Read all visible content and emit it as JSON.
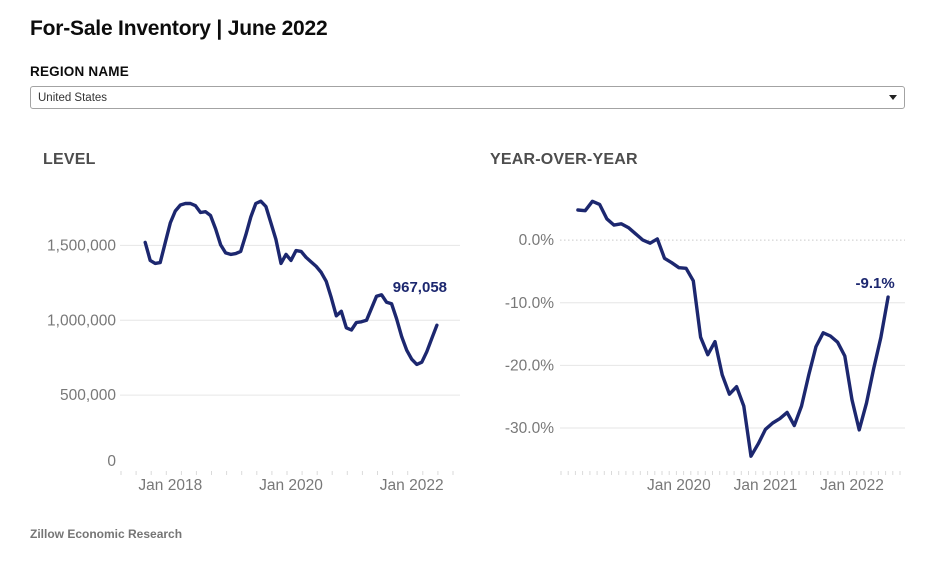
{
  "header": {
    "title": "For-Sale Inventory | June 2022"
  },
  "region_selector": {
    "label": "REGION NAME",
    "value": "United States",
    "caret_icon": "triangle-down"
  },
  "footer": {
    "source": "Zillow Economic Research"
  },
  "colors": {
    "line": "#1c276f",
    "annotation": "#1c276f",
    "grid": "#e6e6e6",
    "zero_grid": "#c9c9c9",
    "axis_dash": "#dadada",
    "tick_label": "#787878",
    "chart_title": "#4d4d4d"
  },
  "chart_data": [
    {
      "id": "level",
      "type": "line",
      "title": "LEVEL",
      "x_unit": "month",
      "start_month": "2017-08",
      "end_month": "2022-06",
      "values": [
        1520000,
        1400000,
        1380000,
        1385000,
        1520000,
        1650000,
        1730000,
        1770000,
        1780000,
        1780000,
        1765000,
        1720000,
        1725000,
        1700000,
        1610000,
        1505000,
        1450000,
        1440000,
        1445000,
        1460000,
        1570000,
        1690000,
        1780000,
        1795000,
        1760000,
        1650000,
        1540000,
        1380000,
        1440000,
        1400000,
        1465000,
        1460000,
        1420000,
        1390000,
        1360000,
        1320000,
        1260000,
        1150000,
        1030000,
        1060000,
        950000,
        935000,
        985000,
        990000,
        1000000,
        1080000,
        1160000,
        1170000,
        1120000,
        1110000,
        1010000,
        890000,
        800000,
        740000,
        705000,
        720000,
        790000,
        880000,
        967058
      ],
      "ylim": [
        0,
        1870000
      ],
      "y_ticks": [
        {
          "value": 0,
          "label": "0",
          "grid": false
        },
        {
          "value": 500000,
          "label": "500,000",
          "grid": true
        },
        {
          "value": 1000000,
          "label": "1,000,000",
          "grid": true
        },
        {
          "value": 1500000,
          "label": "1,500,000",
          "grid": true
        }
      ],
      "x_ticks": [
        {
          "index": 5,
          "label": "Jan 2018"
        },
        {
          "index": 29,
          "label": "Jan 2020"
        },
        {
          "index": 53,
          "label": "Jan 2022"
        }
      ],
      "annotation": {
        "text": "967,058",
        "anchor": "last-point"
      },
      "domain_frac": [
        0.074,
        0.932
      ],
      "grid": true,
      "legend": null
    },
    {
      "id": "yoy",
      "type": "line",
      "title": "YEAR-OVER-YEAR",
      "x_unit": "month",
      "start_month": "2018-11",
      "end_month": "2022-06",
      "values": [
        4.8,
        4.7,
        6.2,
        5.7,
        3.4,
        2.4,
        2.6,
        2.0,
        1.0,
        0.0,
        -0.5,
        0.2,
        -2.9,
        -3.6,
        -4.4,
        -4.5,
        -6.5,
        -15.5,
        -18.3,
        -16.2,
        -21.5,
        -24.6,
        -23.4,
        -26.5,
        -34.5,
        -32.5,
        -30.2,
        -29.2,
        -28.5,
        -27.5,
        -29.6,
        -26.5,
        -21.5,
        -17.0,
        -14.8,
        -15.3,
        -16.3,
        -18.5,
        -25.5,
        -30.3,
        -26.0,
        -20.5,
        -15.5,
        -9.1
      ],
      "ylim": [
        -36.7,
        8
      ],
      "y_ticks": [
        {
          "value": 0,
          "label": "0.0%",
          "grid": true,
          "dotted": true
        },
        {
          "value": -10,
          "label": "-10.0%",
          "grid": true
        },
        {
          "value": -20,
          "label": "-20.0%",
          "grid": true
        },
        {
          "value": -30,
          "label": "-30.0%",
          "grid": true
        }
      ],
      "x_ticks": [
        {
          "index": 14,
          "label": "Jan 2020"
        },
        {
          "index": 26,
          "label": "Jan 2021"
        },
        {
          "index": 38,
          "label": "Jan 2022"
        }
      ],
      "annotation": {
        "text": "-9.1%",
        "anchor": "last-point"
      },
      "domain_frac": [
        0.052,
        0.951
      ],
      "grid": true,
      "legend": null
    }
  ]
}
